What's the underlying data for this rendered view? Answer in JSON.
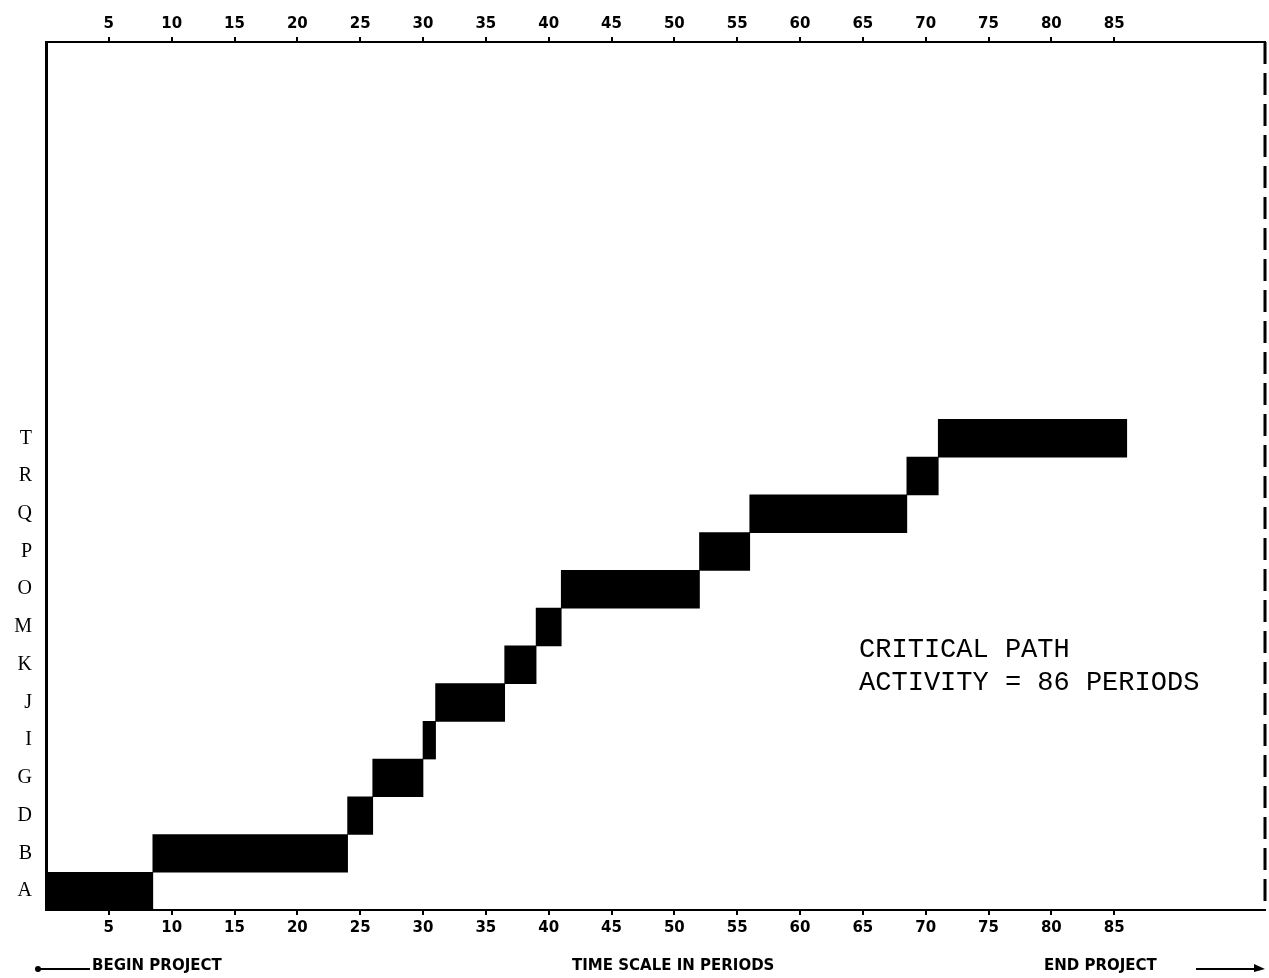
{
  "chart_data": {
    "type": "bar",
    "orientation": "horizontal",
    "xlabel": "TIME SCALE IN PERIODS",
    "categories": [
      null,
      null,
      null,
      null,
      null,
      null,
      null,
      null,
      null,
      null,
      "T",
      "R",
      "Q",
      "P",
      "O",
      "M",
      "K",
      "J",
      "I",
      "G",
      "D",
      "B",
      "A"
    ],
    "base": [
      null,
      null,
      null,
      null,
      null,
      null,
      null,
      null,
      null,
      null,
      71,
      68.5,
      56,
      52,
      41,
      39,
      36.5,
      31,
      30,
      26,
      24,
      8.5,
      0
    ],
    "values": [
      null,
      null,
      null,
      null,
      null,
      null,
      null,
      null,
      null,
      null,
      15,
      2.5,
      12.5,
      4,
      11,
      2,
      2.5,
      5.5,
      1,
      4,
      2,
      15.5,
      8.5
    ],
    "color": "#000000",
    "xlim": [
      0,
      97
    ],
    "xticks": [
      5,
      10,
      15,
      20,
      25,
      30,
      35,
      40,
      45,
      50,
      55,
      60,
      65,
      70,
      75,
      80,
      85
    ],
    "x2lim": [
      0,
      97
    ],
    "x2ticks": [
      5,
      10,
      15,
      20,
      25,
      30,
      35,
      40,
      45,
      50,
      55,
      60,
      65,
      70,
      75,
      80,
      85
    ],
    "annotations": [
      "CRITICAL PATH\nACTIVITY = 86 PERIODS",
      "BEGIN PROJECT",
      "END PROJECT"
    ]
  }
}
